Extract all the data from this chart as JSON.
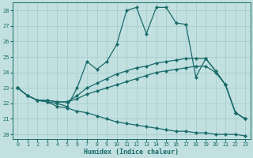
{
  "xlabel": "Humidex (Indice chaleur)",
  "bg_color": "#c2e0e0",
  "grid_color": "#a8cccc",
  "line_color": "#1a6b6b",
  "xlim": [
    -0.5,
    23.5
  ],
  "ylim": [
    19.7,
    28.5
  ],
  "xticks": [
    0,
    1,
    2,
    3,
    4,
    5,
    6,
    7,
    8,
    9,
    10,
    11,
    12,
    13,
    14,
    15,
    16,
    17,
    18,
    19,
    20,
    21,
    22,
    23
  ],
  "yticks": [
    20,
    21,
    22,
    23,
    24,
    25,
    26,
    27,
    28
  ],
  "line1_x": [
    0,
    1,
    2,
    3,
    4,
    5,
    6,
    7,
    8,
    9,
    10,
    11,
    12,
    13,
    14,
    15,
    16,
    17,
    18,
    19,
    20,
    21,
    22,
    23
  ],
  "line1_y": [
    23.0,
    22.5,
    22.2,
    22.1,
    22.0,
    21.8,
    23.0,
    24.7,
    24.2,
    24.7,
    25.8,
    28.0,
    28.2,
    26.5,
    28.2,
    28.2,
    27.2,
    27.1,
    23.7,
    24.9,
    24.1,
    23.2,
    21.4,
    21.0
  ],
  "line2_x": [
    0,
    1,
    2,
    3,
    4,
    5,
    6,
    7,
    8,
    9,
    10,
    11,
    12,
    13,
    14,
    15,
    16,
    17,
    18,
    19,
    20,
    21,
    22,
    23
  ],
  "line2_y": [
    23.0,
    22.5,
    22.2,
    22.2,
    22.1,
    22.1,
    22.5,
    23.0,
    23.3,
    23.6,
    23.9,
    24.1,
    24.3,
    24.4,
    24.6,
    24.7,
    24.8,
    24.9,
    24.9,
    24.9,
    24.1,
    23.2,
    21.4,
    21.0
  ],
  "line3_x": [
    0,
    1,
    2,
    3,
    4,
    5,
    6,
    7,
    8,
    9,
    10,
    11,
    12,
    13,
    14,
    15,
    16,
    17,
    18,
    19,
    20,
    21,
    22,
    23
  ],
  "line3_y": [
    23.0,
    22.5,
    22.2,
    22.2,
    22.1,
    22.1,
    22.3,
    22.6,
    22.8,
    23.0,
    23.2,
    23.4,
    23.6,
    23.8,
    24.0,
    24.1,
    24.2,
    24.3,
    24.4,
    24.4,
    24.0,
    23.2,
    21.4,
    21.0
  ],
  "line4_x": [
    0,
    1,
    2,
    3,
    4,
    5,
    6,
    7,
    8,
    9,
    10,
    11,
    12,
    13,
    14,
    15,
    16,
    17,
    18,
    19,
    20,
    21,
    22,
    23
  ],
  "line4_y": [
    23.0,
    22.5,
    22.2,
    22.1,
    21.8,
    21.7,
    21.5,
    21.4,
    21.2,
    21.0,
    20.8,
    20.7,
    20.6,
    20.5,
    20.4,
    20.3,
    20.2,
    20.2,
    20.1,
    20.1,
    20.0,
    20.0,
    20.0,
    19.9
  ]
}
